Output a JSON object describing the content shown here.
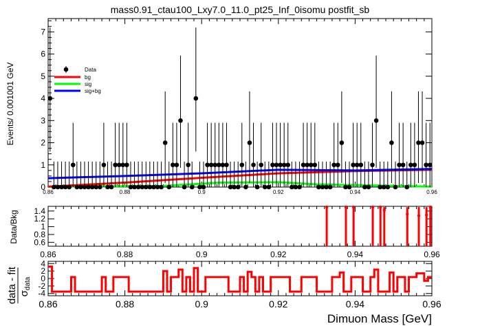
{
  "title": "mass0.91_ctau100_Lxy7.0_11.0_pt25_Inf_0isomu   postfit_sb",
  "colors": {
    "bg": "#ff0000",
    "sig": "#00ff00",
    "sigbg": "#0000ff",
    "data": "#000000",
    "ratio": "#ff0000"
  },
  "chart_data": [
    {
      "type": "scatter",
      "panel": "main",
      "ylabel": "Events/ 0.001001 GeV",
      "xlim": [
        0.86,
        0.96
      ],
      "ylim": [
        0,
        7.6
      ],
      "xticks": [
        "0.86",
        "0.88",
        "0.9",
        "0.92",
        "0.94",
        "0.96"
      ],
      "yticks": [
        "0",
        "1",
        "2",
        "3",
        "4",
        "5",
        "6",
        "7"
      ],
      "legend_position": "top-left",
      "legend": [
        {
          "label": "Data",
          "key": "data"
        },
        {
          "label": "bg",
          "key": "bg"
        },
        {
          "label": "sig",
          "key": "sig"
        },
        {
          "label": "sig+bg",
          "key": "sigbg"
        }
      ],
      "data_counts": [
        4,
        0,
        0,
        0,
        0,
        0,
        1,
        0,
        0,
        0,
        0,
        0,
        0,
        0,
        1,
        0,
        0,
        1,
        1,
        1,
        1,
        0,
        0,
        0,
        0,
        0,
        0,
        0,
        0,
        0,
        2,
        0,
        1,
        1,
        3,
        0,
        1,
        0,
        4,
        0,
        0,
        1,
        1,
        1,
        1,
        1,
        1,
        0,
        0,
        0,
        1,
        0,
        2,
        1,
        0,
        1,
        0,
        0,
        1,
        1,
        1,
        1,
        1,
        0,
        0,
        0,
        1,
        1,
        1,
        1,
        0,
        0,
        0,
        0,
        1,
        1,
        2,
        0,
        0,
        1,
        1,
        1,
        0,
        0,
        1,
        3,
        0,
        0,
        0,
        2,
        0,
        1,
        1,
        0,
        1,
        1,
        2,
        2,
        1,
        1
      ],
      "series": [
        {
          "name": "bg",
          "x": [
            0.86,
            0.88,
            0.9,
            0.92,
            0.94,
            0.96
          ],
          "y": [
            0.02,
            0.2,
            0.42,
            0.62,
            0.72,
            0.78
          ]
        },
        {
          "name": "sig",
          "x": [
            0.86,
            0.89,
            0.905,
            0.92,
            0.93,
            0.96
          ],
          "y": [
            0.02,
            0.05,
            0.2,
            0.22,
            0.12,
            0.02
          ]
        },
        {
          "name": "sig+bg",
          "x": [
            0.86,
            0.88,
            0.9,
            0.92,
            0.94,
            0.96
          ],
          "y": [
            0.4,
            0.5,
            0.62,
            0.78,
            0.75,
            0.82
          ]
        }
      ]
    },
    {
      "type": "scatter",
      "panel": "ratio",
      "ylabel": "Data/Bkg",
      "xlim": [
        0.86,
        0.96
      ],
      "ylim": [
        0.5,
        1.52
      ],
      "xticks": [
        "0.86",
        "0.88",
        "0.9",
        "0.92",
        "0.94",
        "0.96"
      ],
      "yticks": [
        "0.6",
        "0.8",
        "1",
        "1.2",
        "1.4"
      ],
      "points": [
        {
          "x": 0.9326,
          "y": 1.5
        },
        {
          "x": 0.9376,
          "y": 1.5
        },
        {
          "x": 0.9396,
          "y": 1.5
        },
        {
          "x": 0.9446,
          "y": 1.5
        },
        {
          "x": 0.9466,
          "y": 1.5
        },
        {
          "x": 0.9476,
          "y": 1.42
        },
        {
          "x": 0.9536,
          "y": 1.32
        },
        {
          "x": 0.9566,
          "y": 1.28
        },
        {
          "x": 0.9586,
          "y": 1.3
        },
        {
          "x": 0.9596,
          "y": 1.5
        }
      ]
    },
    {
      "type": "bar",
      "panel": "pull",
      "ylabel": "data - fit",
      "ylabel_sub": "σ",
      "ylabel_subscript": "data",
      "xlabel": "Dimuon Mass [GeV]",
      "xlim": [
        0.86,
        0.96
      ],
      "ylim": [
        -4.6,
        4.6
      ],
      "xticks": [
        "0.86",
        "0.88",
        "0.9",
        "0.92",
        "0.94",
        "0.96"
      ],
      "yticks": [
        "-4",
        "-2",
        "0",
        "2",
        "4"
      ],
      "values": [
        3.2,
        -3.5,
        -3.5,
        -3.5,
        -3.5,
        -3.5,
        0.4,
        -3.5,
        -3.5,
        -3.5,
        -3.5,
        -3.5,
        -3.5,
        -3.5,
        0.4,
        -3.5,
        -3.5,
        0.4,
        0.4,
        0.4,
        0.4,
        -3.5,
        -3.5,
        -3.5,
        -3.5,
        -3.5,
        -3.5,
        -3.5,
        -3.5,
        -3.5,
        2.0,
        -3.5,
        0.4,
        0.4,
        2.4,
        -3.5,
        0.4,
        -3.5,
        2.8,
        -3.5,
        -3.5,
        0.4,
        0.4,
        0.4,
        0.4,
        0.4,
        0.4,
        -3.5,
        -3.5,
        -3.5,
        0.4,
        -3.5,
        1.8,
        0.4,
        -3.5,
        0.4,
        -3.5,
        -3.5,
        0.4,
        0.4,
        0.4,
        0.4,
        0.4,
        -3.5,
        -3.5,
        -3.5,
        0.4,
        0.4,
        0.4,
        0.4,
        -3.5,
        -3.5,
        -3.5,
        -3.5,
        0.4,
        0.4,
        1.6,
        -3.5,
        -3.5,
        0.4,
        0.4,
        0.4,
        -3.5,
        -3.5,
        0.4,
        2.4,
        -3.5,
        -3.5,
        -3.5,
        1.6,
        -3.5,
        0.4,
        0.4,
        -3.5,
        0.4,
        0.4,
        1.4,
        1.4,
        -0.6,
        0.4
      ]
    }
  ]
}
